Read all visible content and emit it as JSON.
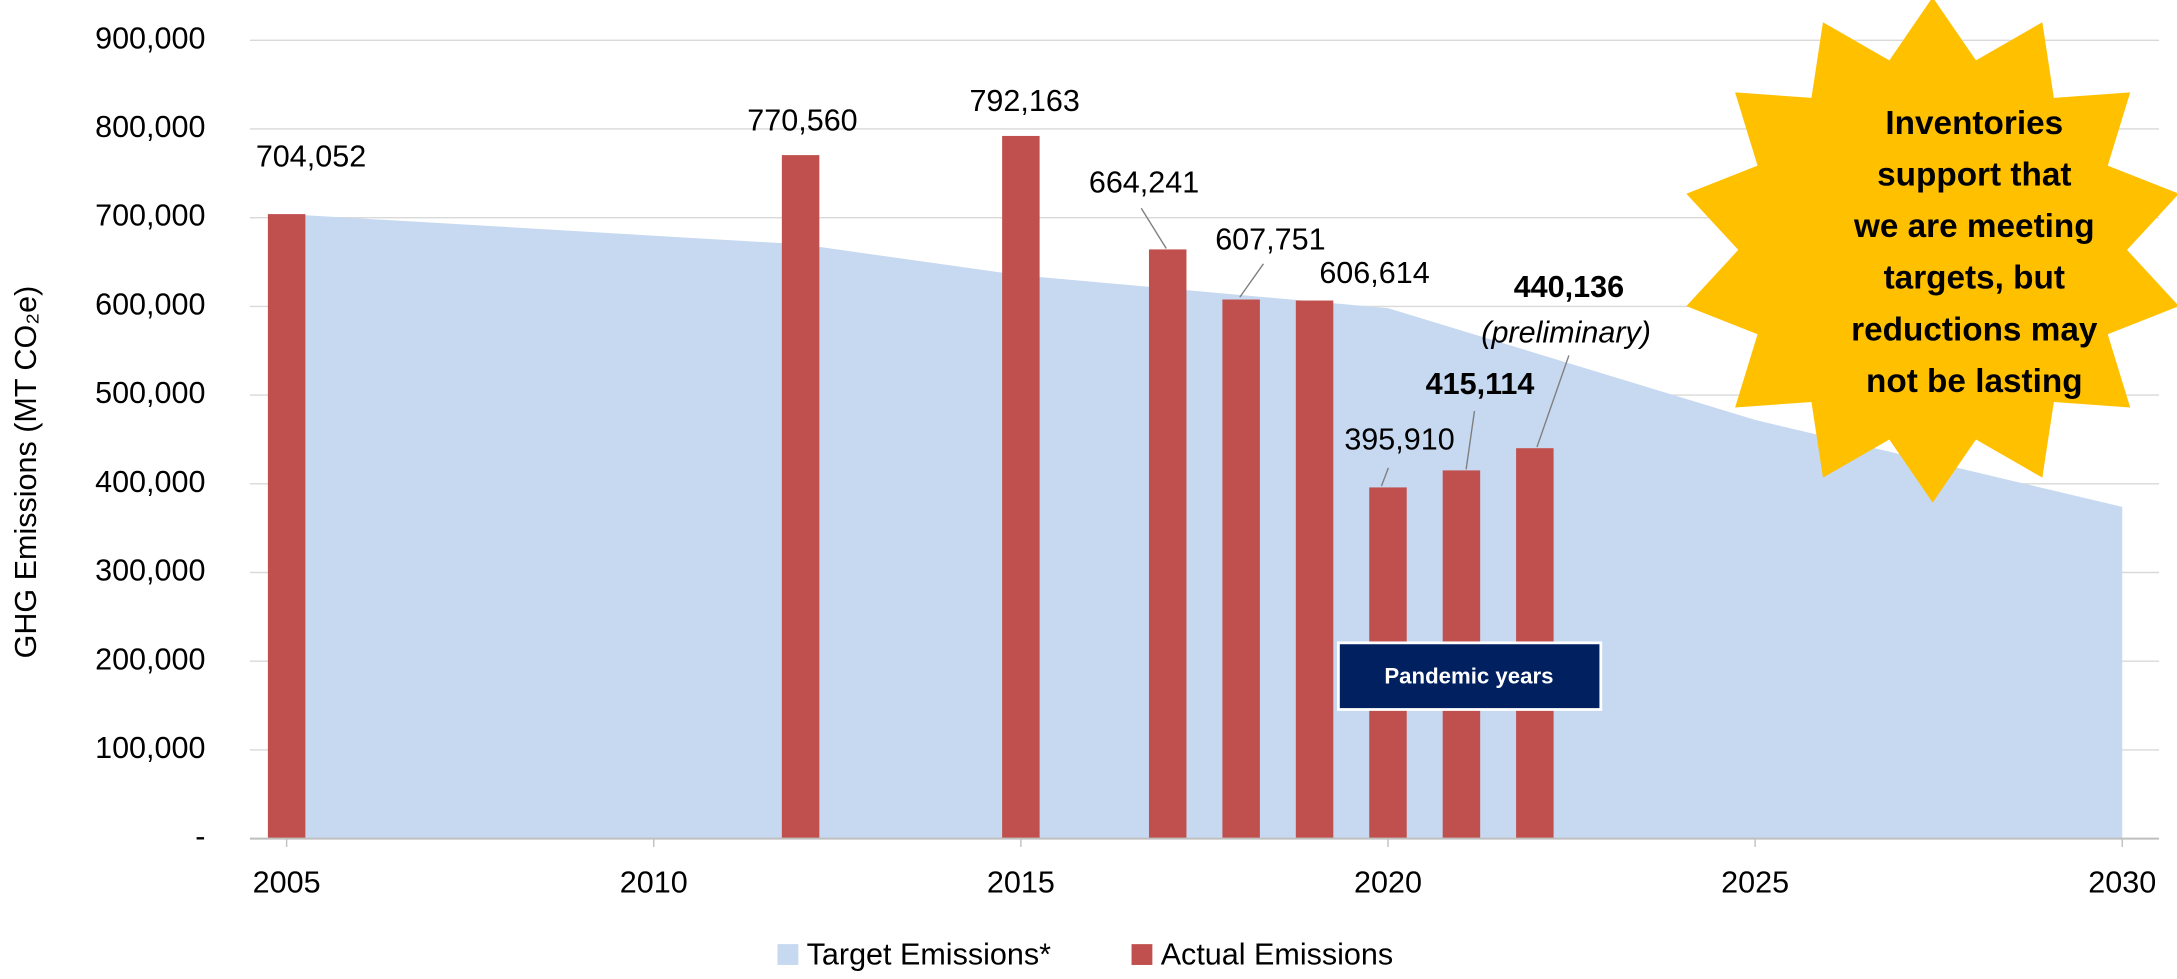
{
  "chart_data": {
    "type": "area_bar",
    "ylabel": "GHG Emissions (MT CO₂e)",
    "xlim": [
      2004.5,
      2030.5
    ],
    "xticks": [
      2005,
      2010,
      2015,
      2020,
      2025,
      2030
    ],
    "ylim": [
      0,
      900000
    ],
    "yticks": [
      {
        "value": 0,
        "label": "-"
      },
      {
        "value": 100000,
        "label": "100,000"
      },
      {
        "value": 200000,
        "label": "200,000"
      },
      {
        "value": 300000,
        "label": "300,000"
      },
      {
        "value": 400000,
        "label": "400,000"
      },
      {
        "value": 500000,
        "label": "500,000"
      },
      {
        "value": 600000,
        "label": "600,000"
      },
      {
        "value": 700000,
        "label": "700,000"
      },
      {
        "value": 800000,
        "label": "800,000"
      },
      {
        "value": 900000,
        "label": "900,000"
      }
    ],
    "grid": true,
    "series": [
      {
        "name": "Target Emissions*",
        "type": "area",
        "color": "#c6d9f0",
        "x": [
          2005,
          2012,
          2015,
          2020,
          2025,
          2030
        ],
        "values": [
          704052,
          670000,
          635000,
          598000,
          472000,
          374000
        ]
      },
      {
        "name": "Actual Emissions",
        "type": "bar",
        "color": "#c0504d",
        "x": [
          2005,
          2012,
          2015,
          2017,
          2018,
          2019,
          2020,
          2021,
          2022
        ],
        "values": [
          704052,
          770560,
          792163,
          664241,
          607751,
          606614,
          395910,
          415114,
          440136
        ],
        "value_labels": [
          "704,052",
          "770,560",
          "792,163",
          "664,241",
          "607,751",
          "606,614",
          "395,910",
          "415,114",
          "440,136"
        ]
      }
    ],
    "annotations": {
      "preliminary": "(preliminary)",
      "pandemic": "Pandemic years",
      "callout": [
        "Inventories",
        "support that",
        "we are meeting",
        "targets, but",
        "reductions may",
        "not be lasting"
      ]
    }
  }
}
